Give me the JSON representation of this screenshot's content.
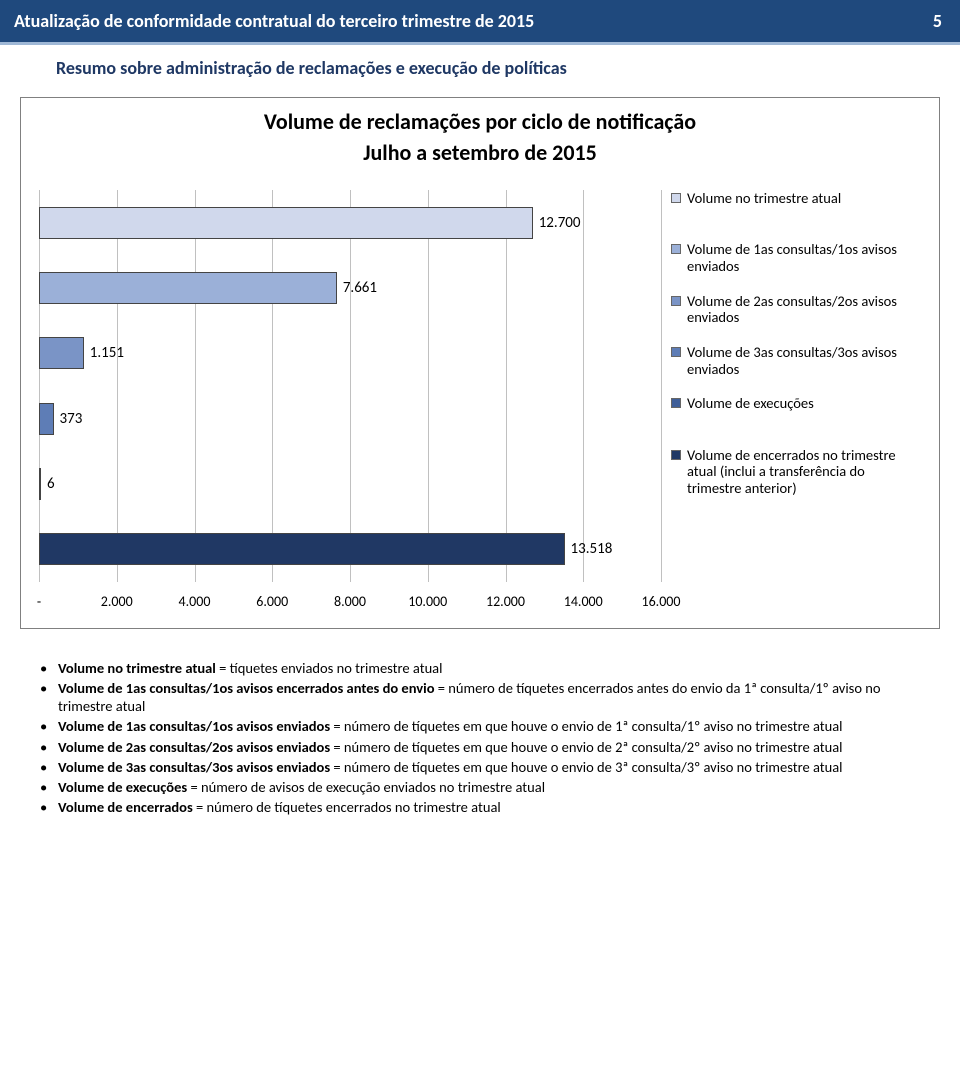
{
  "header": {
    "title": "Atualização de conformidade contratual do terceiro trimestre de 2015",
    "page_number": "5"
  },
  "subheader": "Resumo sobre administração de reclamações e execução de políticas",
  "chart": {
    "type": "bar-horizontal",
    "title_line1": "Volume de reclamações por ciclo de notificação",
    "title_line2": "Julho a setembro de 2015",
    "xlim": [
      0,
      16000
    ],
    "xtick_step": 2000,
    "plot_background": "#ffffff",
    "grid_color": "#c0c0c0",
    "text_color": "#000000",
    "label_fontsize": 15,
    "bars": [
      {
        "value": 12700,
        "label": "12.700",
        "color": "#d0d8ec",
        "legend": "Volume no trimestre atual"
      },
      {
        "value": 7661,
        "label": "7.661",
        "color": "#9bb0d8",
        "legend": "Volume de 1as consultas/1os avisos enviados"
      },
      {
        "value": 1151,
        "label": "1.151",
        "color": "#7a94c6",
        "legend": "Volume de 2as consultas/2os avisos enviados"
      },
      {
        "value": 373,
        "label": "373",
        "color": "#5e7db6",
        "legend": "Volume de 3as consultas/3os avisos enviados"
      },
      {
        "value": 6,
        "label": "6",
        "color": "#3f5f99",
        "legend": "Volume de execuções"
      },
      {
        "value": 13518,
        "label": "13.518",
        "color": "#203864",
        "legend": "Volume de encerrados no trimestre atual (inclui a transferência do trimestre anterior)"
      }
    ],
    "xticks": [
      {
        "v": 0,
        "label": "-"
      },
      {
        "v": 2000,
        "label": "2.000"
      },
      {
        "v": 4000,
        "label": "4.000"
      },
      {
        "v": 6000,
        "label": "6.000"
      },
      {
        "v": 8000,
        "label": "8.000"
      },
      {
        "v": 10000,
        "label": "10.000"
      },
      {
        "v": 12000,
        "label": "12.000"
      },
      {
        "v": 14000,
        "label": "14.000"
      },
      {
        "v": 16000,
        "label": "16.000"
      }
    ]
  },
  "definitions": [
    {
      "term": "Volume no trimestre atual",
      "desc": " = tíquetes enviados no trimestre atual"
    },
    {
      "term": "Volume de 1as consultas/1os avisos encerrados antes do envio",
      "desc": " = número de tíquetes encerrados antes do envio da 1ª consulta/1º aviso no trimestre atual"
    },
    {
      "term": "Volume de 1as consultas/1os avisos enviados",
      "desc": " = número de tíquetes em que houve o envio de 1ª consulta/1º aviso no trimestre atual"
    },
    {
      "term": "Volume de 2as consultas/2os avisos enviados",
      "desc": " = número de tíquetes em que houve o envio de 2ª consulta/2º aviso no trimestre atual"
    },
    {
      "term": "Volume de 3as consultas/3os avisos enviados",
      "desc": " = número de tíquetes em que houve o envio de 3ª consulta/3º aviso no trimestre atual"
    },
    {
      "term": "Volume de execuções",
      "desc": " = número de avisos de execução enviados no trimestre atual"
    },
    {
      "term": "Volume de encerrados",
      "desc": " = número de tíquetes encerrados no trimestre atual"
    }
  ]
}
